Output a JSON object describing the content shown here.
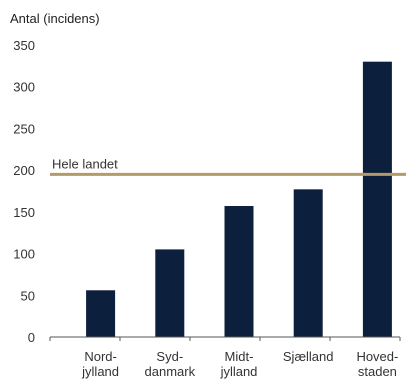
{
  "chart_data": {
    "type": "bar",
    "ylabel": "Antal (incidens)",
    "ylim": [
      0,
      350
    ],
    "yticks": [
      0,
      50,
      100,
      150,
      200,
      250,
      300,
      350
    ],
    "categories": [
      [
        "Nord-",
        "jylland"
      ],
      [
        "Syd-",
        "danmark"
      ],
      [
        "Midt-",
        "jylland"
      ],
      [
        "Sjælland"
      ],
      [
        "Hoved-",
        "staden"
      ]
    ],
    "values": [
      56,
      105,
      157,
      177,
      330
    ],
    "reference_line": {
      "label": "Hele landet",
      "value": 195
    },
    "grid": false,
    "colors": {
      "bar": "#0c1f3d",
      "reference_line": "#b39a6b",
      "axis": "#555555"
    }
  }
}
